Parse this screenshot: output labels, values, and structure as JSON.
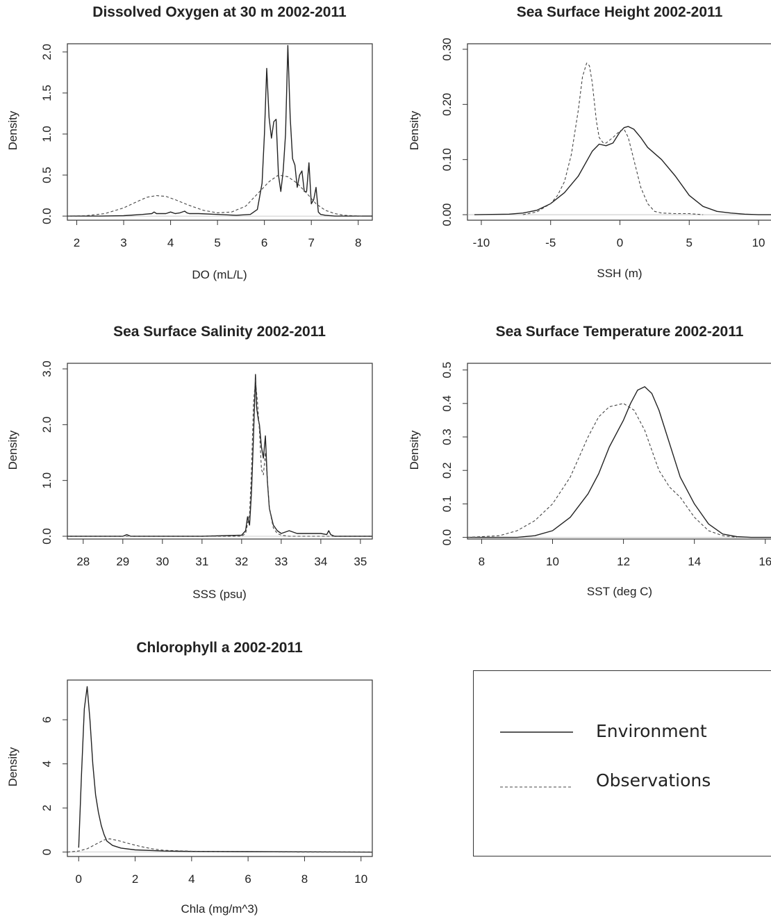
{
  "chart_data": [
    {
      "type": "line",
      "title": "Dissolved Oxygen at 30 m 2002-2011",
      "xlabel": "DO (mL/L)",
      "ylabel": "Density",
      "xlim": [
        1.8,
        8.3
      ],
      "ylim": [
        -0.05,
        2.1
      ],
      "xticks": [
        2,
        3,
        4,
        5,
        6,
        7,
        8
      ],
      "xtick_labels": [
        "2",
        "3",
        "4",
        "5",
        "6",
        "7",
        "8"
      ],
      "yticks": [
        0.0,
        0.5,
        1.0,
        1.5,
        2.0
      ],
      "ytick_labels": [
        "0.0",
        "0.5",
        "1.0",
        "1.5",
        "2.0"
      ],
      "series": [
        {
          "name": "Environment",
          "style": "solid",
          "x": [
            1.8,
            2.5,
            3.0,
            3.4,
            3.6,
            3.65,
            3.7,
            3.9,
            4.0,
            4.1,
            4.2,
            4.3,
            4.35,
            4.4,
            4.6,
            5.0,
            5.4,
            5.7,
            5.85,
            5.95,
            6.0,
            6.05,
            6.1,
            6.15,
            6.2,
            6.25,
            6.3,
            6.35,
            6.4,
            6.45,
            6.5,
            6.55,
            6.6,
            6.65,
            6.7,
            6.75,
            6.8,
            6.85,
            6.9,
            6.95,
            7.0,
            7.05,
            7.1,
            7.15,
            7.2,
            7.3,
            7.5,
            7.8,
            8.3
          ],
          "y": [
            0.0,
            0.0,
            0.005,
            0.02,
            0.03,
            0.05,
            0.03,
            0.03,
            0.05,
            0.03,
            0.04,
            0.06,
            0.04,
            0.03,
            0.03,
            0.02,
            0.01,
            0.02,
            0.08,
            0.4,
            1.0,
            1.8,
            1.2,
            0.95,
            1.15,
            1.18,
            0.5,
            0.3,
            0.55,
            1.0,
            2.08,
            1.2,
            0.7,
            0.62,
            0.35,
            0.5,
            0.55,
            0.3,
            0.3,
            0.65,
            0.15,
            0.2,
            0.35,
            0.05,
            0.02,
            0.01,
            0.0,
            0.0,
            0.0
          ]
        },
        {
          "name": "Observations",
          "style": "dashed",
          "x": [
            1.8,
            2.2,
            2.6,
            3.0,
            3.3,
            3.5,
            3.7,
            3.9,
            4.1,
            4.4,
            4.7,
            5.0,
            5.3,
            5.6,
            5.9,
            6.1,
            6.3,
            6.5,
            6.7,
            6.9,
            7.1,
            7.3,
            7.5,
            7.7,
            7.9,
            8.1
          ],
          "y": [
            0.0,
            0.005,
            0.03,
            0.1,
            0.18,
            0.23,
            0.25,
            0.24,
            0.2,
            0.13,
            0.07,
            0.04,
            0.05,
            0.12,
            0.3,
            0.42,
            0.5,
            0.48,
            0.4,
            0.28,
            0.15,
            0.07,
            0.03,
            0.01,
            0.003,
            0.0
          ]
        }
      ]
    },
    {
      "type": "line",
      "title": "Sea Surface Height 2002-2011",
      "xlabel": "SSH (m)",
      "ylabel": "Density",
      "xlim": [
        -11,
        11
      ],
      "ylim": [
        -0.01,
        0.31
      ],
      "xticks": [
        -10,
        -5,
        0,
        5,
        10
      ],
      "xtick_labels": [
        "-10",
        "-5",
        "0",
        "5",
        "10"
      ],
      "yticks": [
        0.0,
        0.1,
        0.2,
        0.3
      ],
      "ytick_labels": [
        "0.00",
        "0.10",
        "0.20",
        "0.30"
      ],
      "series": [
        {
          "name": "Environment",
          "style": "solid",
          "x": [
            -10.5,
            -8,
            -7,
            -6,
            -5,
            -4,
            -3,
            -2,
            -1.5,
            -1,
            -0.5,
            0,
            0.3,
            0.6,
            1,
            1.5,
            2,
            3,
            4,
            5,
            6,
            7,
            8,
            9,
            10,
            11
          ],
          "y": [
            0.0,
            0.001,
            0.003,
            0.008,
            0.02,
            0.04,
            0.07,
            0.115,
            0.128,
            0.125,
            0.13,
            0.15,
            0.158,
            0.16,
            0.155,
            0.14,
            0.122,
            0.1,
            0.07,
            0.035,
            0.015,
            0.006,
            0.003,
            0.001,
            0.0,
            0.0
          ]
        },
        {
          "name": "Observations",
          "style": "dashed",
          "x": [
            -7,
            -6,
            -5,
            -4.5,
            -4,
            -3.5,
            -3,
            -2.7,
            -2.4,
            -2.2,
            -2,
            -1.7,
            -1.5,
            -1.2,
            -1,
            -0.5,
            0,
            0.3,
            0.6,
            1,
            1.5,
            2,
            2.5,
            3,
            4,
            5,
            6
          ],
          "y": [
            0.0,
            0.005,
            0.02,
            0.035,
            0.06,
            0.11,
            0.19,
            0.25,
            0.275,
            0.27,
            0.24,
            0.17,
            0.14,
            0.13,
            0.13,
            0.14,
            0.152,
            0.155,
            0.14,
            0.1,
            0.05,
            0.02,
            0.006,
            0.003,
            0.002,
            0.002,
            0.0
          ]
        }
      ]
    },
    {
      "type": "line",
      "title": "Sea Surface Salinity 2002-2011",
      "xlabel": "SSS (psu)",
      "ylabel": "Density",
      "xlim": [
        27.6,
        35.3
      ],
      "ylim": [
        -0.05,
        3.1
      ],
      "xticks": [
        28,
        29,
        30,
        31,
        32,
        33,
        34,
        35
      ],
      "xtick_labels": [
        "28",
        "29",
        "30",
        "31",
        "32",
        "33",
        "34",
        "35"
      ],
      "yticks": [
        0.0,
        1.0,
        2.0,
        3.0
      ],
      "ytick_labels": [
        "0.0",
        "1.0",
        "2.0",
        "3.0"
      ],
      "series": [
        {
          "name": "Environment",
          "style": "solid",
          "x": [
            27.6,
            29,
            29.1,
            29.2,
            31,
            32,
            32.1,
            32.15,
            32.2,
            32.25,
            32.3,
            32.35,
            32.38,
            32.42,
            32.45,
            32.5,
            32.55,
            32.6,
            32.65,
            32.7,
            32.75,
            32.8,
            32.9,
            33,
            33.2,
            33.4,
            33.6,
            34,
            34.15,
            34.2,
            34.25,
            34.35,
            35.3
          ],
          "y": [
            0.0,
            0.0,
            0.03,
            0.0,
            0.0,
            0.02,
            0.1,
            0.35,
            0.2,
            0.8,
            1.8,
            2.9,
            2.3,
            2.1,
            2.0,
            1.6,
            1.4,
            1.8,
            1.0,
            0.5,
            0.35,
            0.2,
            0.1,
            0.05,
            0.1,
            0.05,
            0.05,
            0.05,
            0.03,
            0.1,
            0.03,
            0.0,
            0.0
          ]
        },
        {
          "name": "Observations",
          "style": "dashed",
          "x": [
            27.6,
            31.5,
            32.0,
            32.1,
            32.2,
            32.25,
            32.3,
            32.35,
            32.4,
            32.45,
            32.5,
            32.55,
            32.6,
            32.65,
            32.7,
            32.8,
            32.9,
            33,
            33.2,
            34,
            35.3
          ],
          "y": [
            0.0,
            0.0,
            0.0,
            0.05,
            0.4,
            1.2,
            2.4,
            2.8,
            2.4,
            1.9,
            1.2,
            1.1,
            1.5,
            1.0,
            0.5,
            0.15,
            0.05,
            0.02,
            0.0,
            0.0,
            0.0
          ]
        }
      ]
    },
    {
      "type": "line",
      "title": "Sea Surface Temperature 2002-2011",
      "xlabel": "SST (deg C)",
      "ylabel": "Density",
      "xlim": [
        7.6,
        16.2
      ],
      "ylim": [
        -0.005,
        0.52
      ],
      "xticks": [
        8,
        10,
        12,
        14,
        16
      ],
      "xtick_labels": [
        "8",
        "10",
        "12",
        "14",
        "16"
      ],
      "yticks": [
        0.0,
        0.1,
        0.2,
        0.3,
        0.4,
        0.5
      ],
      "ytick_labels": [
        "0.0",
        "0.1",
        "0.2",
        "0.3",
        "0.4",
        "0.5"
      ],
      "series": [
        {
          "name": "Environment",
          "style": "solid",
          "x": [
            7.6,
            9,
            9.5,
            10,
            10.5,
            11,
            11.3,
            11.6,
            12,
            12.2,
            12.4,
            12.6,
            12.8,
            13,
            13.3,
            13.6,
            14,
            14.4,
            14.8,
            15.2,
            15.6,
            16.2
          ],
          "y": [
            0.0,
            0.0,
            0.005,
            0.02,
            0.06,
            0.13,
            0.19,
            0.27,
            0.35,
            0.4,
            0.44,
            0.45,
            0.43,
            0.38,
            0.28,
            0.18,
            0.1,
            0.04,
            0.01,
            0.002,
            0.0,
            0.0
          ]
        },
        {
          "name": "Observations",
          "style": "dashed",
          "x": [
            7.6,
            8.5,
            9,
            9.5,
            10,
            10.5,
            11,
            11.3,
            11.6,
            12,
            12.3,
            12.6,
            13,
            13.3,
            13.6,
            14,
            14.4,
            14.8,
            15.2
          ],
          "y": [
            0.0,
            0.005,
            0.02,
            0.05,
            0.1,
            0.18,
            0.3,
            0.36,
            0.39,
            0.4,
            0.38,
            0.32,
            0.2,
            0.15,
            0.12,
            0.06,
            0.02,
            0.005,
            0.0
          ]
        }
      ]
    },
    {
      "type": "line",
      "title": "Chlorophyll a 2002-2011",
      "xlabel": "Chla (mg/m^3)",
      "ylabel": "Density",
      "xlim": [
        -0.4,
        10.4
      ],
      "ylim": [
        -0.2,
        7.8
      ],
      "xticks": [
        0,
        2,
        4,
        6,
        8,
        10
      ],
      "xtick_labels": [
        "0",
        "2",
        "4",
        "6",
        "8",
        "10"
      ],
      "yticks": [
        0,
        2,
        4,
        6
      ],
      "ytick_labels": [
        "0",
        "2",
        "4",
        "6"
      ],
      "series": [
        {
          "name": "Environment",
          "style": "solid",
          "x": [
            0.0,
            0.1,
            0.2,
            0.3,
            0.4,
            0.5,
            0.6,
            0.7,
            0.8,
            0.9,
            1.0,
            1.2,
            1.5,
            2,
            3,
            4,
            6,
            8,
            10.4
          ],
          "y": [
            0.2,
            3.5,
            6.5,
            7.5,
            6.0,
            4.0,
            2.6,
            1.8,
            1.2,
            0.8,
            0.5,
            0.3,
            0.18,
            0.1,
            0.05,
            0.03,
            0.02,
            0.01,
            0.0
          ]
        },
        {
          "name": "Observations",
          "style": "dashed",
          "x": [
            -0.4,
            0.0,
            0.3,
            0.6,
            0.9,
            1.1,
            1.4,
            1.8,
            2.2,
            2.6,
            3,
            4,
            5,
            6,
            8,
            10.4
          ],
          "y": [
            0.0,
            0.05,
            0.15,
            0.35,
            0.55,
            0.6,
            0.52,
            0.38,
            0.25,
            0.15,
            0.08,
            0.04,
            0.02,
            0.01,
            0.0,
            0.0
          ]
        }
      ]
    }
  ],
  "legend": {
    "items": [
      {
        "label": "Environment",
        "style": "solid"
      },
      {
        "label": "Observations",
        "style": "dashed"
      }
    ]
  }
}
